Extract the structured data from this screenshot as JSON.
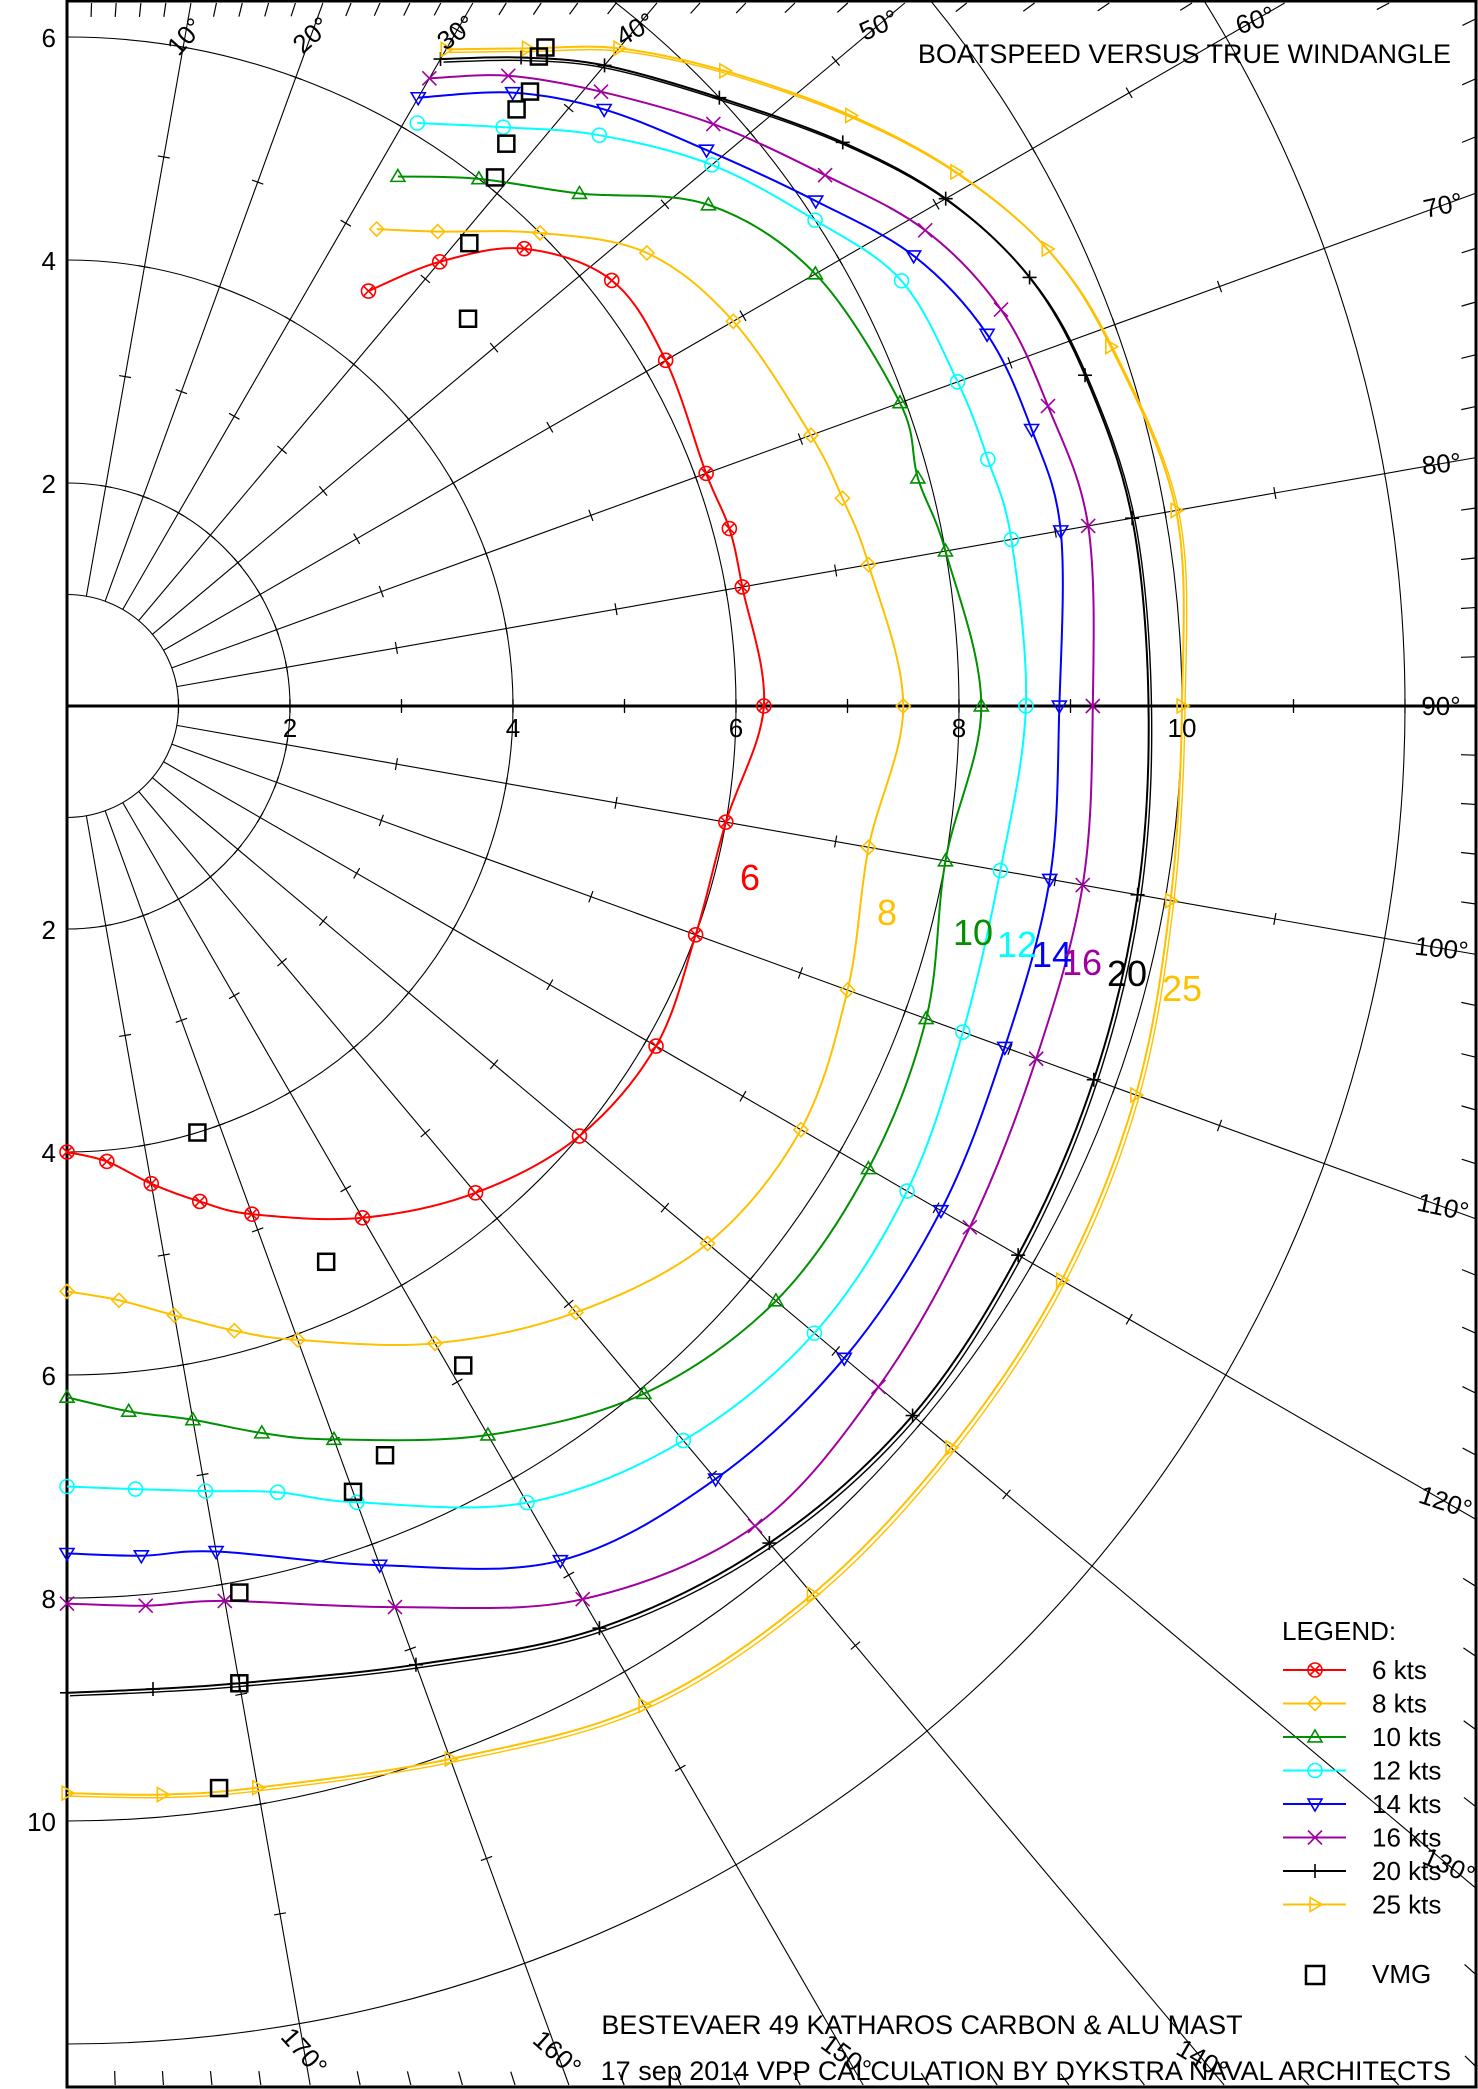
{
  "title": "BOATSPEED VERSUS TRUE WINDANGLE",
  "footer": {
    "line1": "BESTEVAER 49 KATHAROS CARBON & ALU MAST",
    "line2": "17 sep 2014  VPP CALCULATION BY DYKSTRA NAVAL ARCHITECTS"
  },
  "legend": {
    "title": "LEGEND:",
    "vmg_label": "VMG"
  },
  "chart_data": {
    "type": "polar",
    "title": "BOATSPEED VERSUS TRUE WINDANGLE",
    "radial_unit": "knots",
    "radial_ticks": [
      "2",
      "4",
      "6",
      "8",
      "10"
    ],
    "radial_ticks_down": [
      "2",
      "4",
      "6",
      "8",
      "10"
    ],
    "angle_ticks": [
      "10°",
      "20°",
      "30°",
      "40°",
      "50°",
      "60°",
      "70°",
      "80°",
      "90°",
      "100°",
      "110°",
      "120°",
      "130°",
      "140°",
      "150°",
      "160°",
      "170°"
    ],
    "rlim": [
      0,
      12
    ],
    "theta_range_deg": [
      0,
      180
    ],
    "grid": true,
    "legend_position": "bottom-right",
    "series": [
      {
        "name": "6 kts",
        "curve_label": "6",
        "color": "#ff0000",
        "marker": "circle-x",
        "points": [
          [
            36,
            4.6
          ],
          [
            40,
            5.2
          ],
          [
            45,
            5.8
          ],
          [
            52,
            6.2
          ],
          [
            60,
            6.2
          ],
          [
            70,
            6.1
          ],
          [
            75,
            6.15
          ],
          [
            80,
            6.15
          ],
          [
            90,
            6.25
          ],
          [
            100,
            6.0
          ],
          [
            110,
            6.0
          ],
          [
            120,
            6.1
          ],
          [
            130,
            6.0
          ],
          [
            140,
            5.7
          ],
          [
            150,
            5.3
          ],
          [
            160,
            4.85
          ],
          [
            165,
            4.6
          ],
          [
            170,
            4.35
          ],
          [
            175,
            4.1
          ],
          [
            180,
            4.0
          ]
        ],
        "vmg_up": [
          46,
          5.0
        ],
        "vmg_down": [
          163,
          4.0
        ]
      },
      {
        "name": "8 kts",
        "curve_label": "8",
        "color": "#ffc000",
        "marker": "diamond",
        "points": [
          [
            33,
            5.1
          ],
          [
            38,
            5.4
          ],
          [
            45,
            6.0
          ],
          [
            52,
            6.6
          ],
          [
            60,
            6.9
          ],
          [
            70,
            7.1
          ],
          [
            75,
            7.2
          ],
          [
            80,
            7.3
          ],
          [
            90,
            7.5
          ],
          [
            100,
            7.3
          ],
          [
            110,
            7.45
          ],
          [
            120,
            7.6
          ],
          [
            130,
            7.5
          ],
          [
            140,
            7.1
          ],
          [
            150,
            6.6
          ],
          [
            160,
            6.05
          ],
          [
            165,
            5.8
          ],
          [
            170,
            5.55
          ],
          [
            175,
            5.35
          ],
          [
            180,
            5.25
          ]
        ],
        "vmg_up": [
          41,
          5.5
        ],
        "vmg_down": [
          155,
          5.5
        ]
      },
      {
        "name": "10 kts",
        "curve_label": "10",
        "color": "#009000",
        "marker": "triangle-up",
        "points": [
          [
            32,
            5.6
          ],
          [
            38,
            6.0
          ],
          [
            45,
            6.5
          ],
          [
            52,
            7.3
          ],
          [
            60,
            7.75
          ],
          [
            70,
            7.95
          ],
          [
            75,
            7.9
          ],
          [
            80,
            8.0
          ],
          [
            90,
            8.2
          ],
          [
            100,
            8.0
          ],
          [
            110,
            8.2
          ],
          [
            120,
            8.3
          ],
          [
            130,
            8.3
          ],
          [
            140,
            8.05
          ],
          [
            150,
            7.55
          ],
          [
            160,
            7.0
          ],
          [
            165,
            6.75
          ],
          [
            170,
            6.5
          ],
          [
            175,
            6.35
          ],
          [
            180,
            6.2
          ]
        ],
        "vmg_up": [
          39,
          6.1
        ],
        "vmg_down": [
          149,
          6.9
        ]
      },
      {
        "name": "12 kts",
        "curve_label": "12",
        "color": "#00ffff",
        "marker": "circle",
        "points": [
          [
            31,
            6.1
          ],
          [
            37,
            6.5
          ],
          [
            43,
            7.0
          ],
          [
            50,
            7.55
          ],
          [
            57,
            8.0
          ],
          [
            63,
            8.4
          ],
          [
            70,
            8.5
          ],
          [
            75,
            8.55
          ],
          [
            80,
            8.6
          ],
          [
            90,
            8.6
          ],
          [
            100,
            8.5
          ],
          [
            110,
            8.55
          ],
          [
            120,
            8.7
          ],
          [
            130,
            8.75
          ],
          [
            140,
            8.6
          ],
          [
            150,
            8.25
          ],
          [
            160,
            7.6
          ],
          [
            165,
            7.3
          ],
          [
            170,
            7.15
          ],
          [
            175,
            7.05
          ],
          [
            180,
            7.0
          ]
        ],
        "vmg_up": [
          38,
          6.4
        ],
        "vmg_down": [
          157,
          7.3
        ]
      },
      {
        "name": "14 kts",
        "curve_label": "14",
        "color": "#0000ff",
        "marker": "triangle-down",
        "points": [
          [
            30,
            6.3
          ],
          [
            36,
            6.8
          ],
          [
            42,
            7.2
          ],
          [
            49,
            7.6
          ],
          [
            56,
            8.1
          ],
          [
            62,
            8.6
          ],
          [
            68,
            8.9
          ],
          [
            74,
            9.0
          ],
          [
            80,
            9.05
          ],
          [
            90,
            8.9
          ],
          [
            100,
            8.95
          ],
          [
            110,
            8.95
          ],
          [
            120,
            9.05
          ],
          [
            130,
            9.1
          ],
          [
            140,
            9.05
          ],
          [
            150,
            8.85
          ],
          [
            160,
            8.2
          ],
          [
            170,
            7.7
          ],
          [
            175,
            7.65
          ],
          [
            180,
            7.6
          ]
        ],
        "vmg_up": [
          37,
          6.7
        ],
        "vmg_down": [
          160,
          7.5
        ]
      },
      {
        "name": "16 kts",
        "curve_label": "16",
        "color": "#a000a0",
        "marker": "x",
        "points": [
          [
            30,
            6.5
          ],
          [
            35,
            6.9
          ],
          [
            41,
            7.3
          ],
          [
            48,
            7.8
          ],
          [
            55,
            8.3
          ],
          [
            61,
            8.8
          ],
          [
            67,
            9.1
          ],
          [
            73,
            9.2
          ],
          [
            80,
            9.3
          ],
          [
            90,
            9.2
          ],
          [
            100,
            9.25
          ],
          [
            110,
            9.25
          ],
          [
            120,
            9.35
          ],
          [
            130,
            9.5
          ],
          [
            140,
            9.6
          ],
          [
            150,
            9.25
          ],
          [
            160,
            8.6
          ],
          [
            170,
            8.15
          ],
          [
            175,
            8.1
          ],
          [
            180,
            8.05
          ]
        ],
        "vmg_up": [
          37,
          6.9
        ],
        "vmg_down": [
          169,
          8.1
        ]
      },
      {
        "name": "20 kts",
        "curve_label": "20",
        "color": "#000000",
        "marker": "plus",
        "points": [
          [
            30,
            6.7
          ],
          [
            35,
            7.1
          ],
          [
            40,
            7.5
          ],
          [
            47,
            8.0
          ],
          [
            54,
            8.6
          ],
          [
            60,
            9.1
          ],
          [
            66,
            9.45
          ],
          [
            72,
            9.6
          ],
          [
            80,
            9.7
          ],
          [
            90,
            9.7
          ],
          [
            100,
            9.75
          ],
          [
            110,
            9.8
          ],
          [
            120,
            9.85
          ],
          [
            130,
            9.9
          ],
          [
            140,
            9.8
          ],
          [
            150,
            9.55
          ],
          [
            160,
            9.15
          ],
          [
            170,
            8.9
          ],
          [
            175,
            8.85
          ],
          [
            180,
            8.85
          ]
        ],
        "vmg_up": [
          36,
          7.2
        ],
        "vmg_down": [
          170,
          8.9
        ]
      },
      {
        "name": "25 kts",
        "curve_label": "25",
        "color": "#ffc000",
        "marker": "triangle-right",
        "points": [
          [
            30,
            6.8
          ],
          [
            35,
            7.2
          ],
          [
            40,
            7.7
          ],
          [
            46,
            8.2
          ],
          [
            53,
            8.8
          ],
          [
            59,
            9.3
          ],
          [
            65,
            9.7
          ],
          [
            71,
            9.9
          ],
          [
            80,
            10.1
          ],
          [
            90,
            10.0
          ],
          [
            100,
            10.05
          ],
          [
            110,
            10.2
          ],
          [
            120,
            10.3
          ],
          [
            130,
            10.35
          ],
          [
            140,
            10.4
          ],
          [
            150,
            10.35
          ],
          [
            160,
            10.05
          ],
          [
            170,
            9.85
          ],
          [
            175,
            9.8
          ],
          [
            180,
            9.75
          ]
        ],
        "vmg_up": [
          36,
          7.3
        ],
        "vmg_down": [
          172,
          9.8
        ]
      }
    ]
  }
}
